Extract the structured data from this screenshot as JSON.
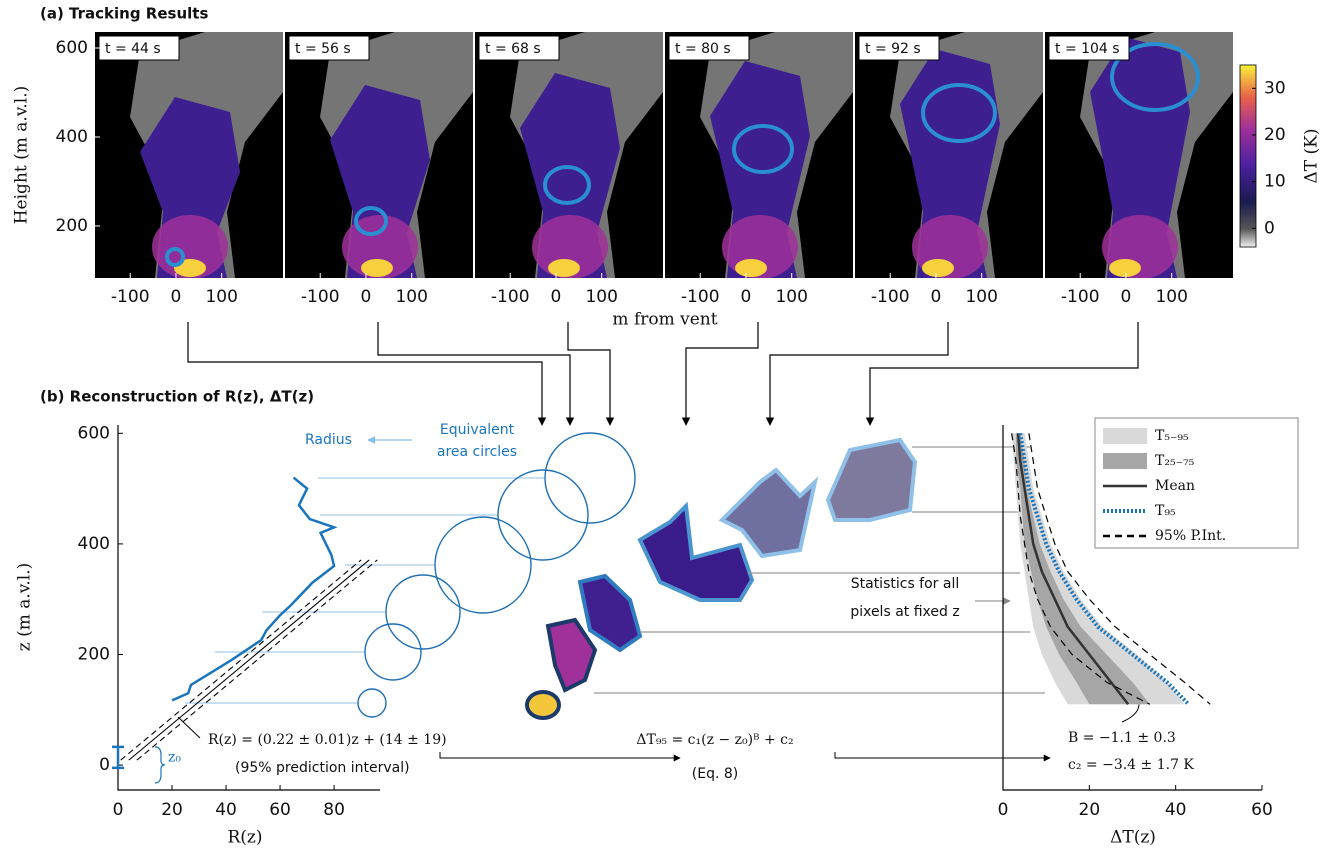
{
  "panel_a": {
    "title": "(a)  Tracking Results",
    "frames": [
      "t = 44 s",
      "t = 56 s",
      "t = 68 s",
      "t = 80 s",
      "t = 92 s",
      "t = 104 s"
    ],
    "ylabel": "Height (m a.v.l.)",
    "xlabel": "m from vent",
    "ylim": [
      83,
      636
    ],
    "yticks": [
      200,
      400,
      600
    ],
    "xlim": [
      -177,
      234
    ],
    "xticks": [
      -100,
      0,
      100
    ],
    "colorbar": {
      "label": "ΔT (K)",
      "lim": [
        -4,
        35
      ],
      "ticks": [
        0,
        10,
        20,
        30
      ]
    }
  },
  "panel_b": {
    "title": "(b)  Reconstruction of R(z), ΔT(z)",
    "circles_label": [
      "Equivalent",
      "area circles"
    ],
    "statistics_label": [
      "Statistics for all",
      "pixels at fixed z"
    ]
  },
  "chart_data": [
    {
      "type": "line",
      "xlabel": "R(z)",
      "ylabel": "z (m a.v.l.)",
      "xlim": [
        0,
        97
      ],
      "ylim": [
        -45,
        615
      ],
      "xticks": [
        0,
        20,
        40,
        60,
        80
      ],
      "yticks": [
        0,
        200,
        400,
        600
      ],
      "series": [
        {
          "name": "Radius",
          "color": "#1a75bc",
          "x": [
            20,
            26,
            27,
            32,
            42,
            53,
            55,
            60,
            64,
            72,
            80,
            79,
            77,
            75,
            80,
            71,
            67,
            70,
            65
          ],
          "y": [
            117,
            130,
            145,
            160,
            190,
            226,
            244,
            271,
            289,
            330,
            360,
            380,
            400,
            420,
            430,
            445,
            470,
            500,
            520
          ]
        }
      ],
      "fit": {
        "label": "R(z) = (0.22 ± 0.01)z + (14 ± 19)",
        "note": "(95% prediction interval)",
        "lines": [
          {
            "x": [
              4,
              93
            ],
            "y": [
              9,
              371
            ]
          },
          {
            "x": [
              1,
              90
            ],
            "y": [
              9,
              371
            ]
          },
          {
            "x": [
              7,
              96
            ],
            "y": [
              9,
              371
            ]
          }
        ]
      },
      "z0": {
        "label": "z₀",
        "value": 14,
        "error": 19
      }
    },
    {
      "type": "line",
      "xlabel": "ΔT(z)",
      "xlim": [
        0,
        60
      ],
      "ylim": [
        -45,
        615
      ],
      "xticks": [
        0,
        20,
        40,
        60
      ],
      "y": [
        600,
        550,
        500,
        450,
        400,
        350,
        300,
        250,
        200,
        150,
        110
      ],
      "series": [
        {
          "name": "T₅₋₉₅",
          "color": "#d9d9d9",
          "low": [
            2,
            2.5,
            3,
            3.5,
            4,
            5,
            6,
            7,
            9,
            12,
            15
          ],
          "high": [
            5,
            6,
            7,
            9,
            11,
            14,
            18,
            23,
            31,
            38,
            42
          ]
        },
        {
          "name": "T₂₅₋₇₅",
          "color": "#a6a6a6",
          "low": [
            3,
            3,
            4,
            4.5,
            5,
            6.5,
            8,
            10,
            13,
            17,
            20
          ],
          "high": [
            4,
            5,
            5.5,
            7,
            8.5,
            11,
            14,
            18,
            24,
            30,
            34
          ]
        },
        {
          "name": "Mean",
          "color": "#333333",
          "values": [
            3.5,
            4,
            5,
            6,
            7,
            9,
            12,
            15,
            20,
            25,
            29
          ]
        },
        {
          "name": "T₉₅",
          "color": "#1a75bc",
          "values": [
            4,
            5,
            6,
            8,
            10,
            13,
            17,
            22,
            30,
            38,
            43
          ]
        },
        {
          "name": "95% P.Int.",
          "color": "#000000",
          "low": [
            2,
            3,
            3.5,
            4,
            5,
            6,
            8,
            11,
            16,
            24,
            34
          ],
          "high": [
            6,
            7,
            8,
            10,
            12,
            15,
            20,
            26,
            34,
            42,
            48
          ]
        }
      ],
      "formula": "ΔT₉₅ = c₁(z − z₀)ᴮ + c₂",
      "formula_note": "(Eq. 8)",
      "fit_params": [
        "B = −1.1 ± 0.3",
        "c₂ = −3.4 ± 1.7 K"
      ]
    }
  ]
}
